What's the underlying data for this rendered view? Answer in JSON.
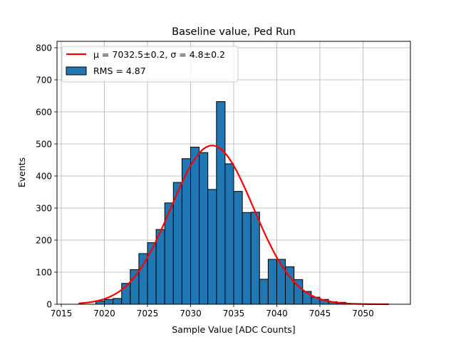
{
  "chart_data": {
    "type": "bar",
    "title": "Baseline value, Ped Run",
    "xlabel": "Sample Value [ADC Counts]",
    "ylabel": "Events",
    "xlim": [
      7014.5,
      7055.5
    ],
    "ylim": [
      0,
      820
    ],
    "xticks": [
      7015,
      7020,
      7025,
      7030,
      7035,
      7040,
      7045,
      7050
    ],
    "yticks": [
      0,
      100,
      200,
      300,
      400,
      500,
      600,
      700,
      800
    ],
    "grid": true,
    "legend_position": "top-left",
    "colors": {
      "bars": "#1f77b4",
      "fit": "#ff0000",
      "grid": "#b0b0b0"
    },
    "histogram": {
      "name": "RMS = 4.87",
      "bin_width": 1,
      "bins": [
        {
          "x": 7019.5,
          "value": 10
        },
        {
          "x": 7020.5,
          "value": 15
        },
        {
          "x": 7021.5,
          "value": 18
        },
        {
          "x": 7022.5,
          "value": 65
        },
        {
          "x": 7023.5,
          "value": 108
        },
        {
          "x": 7024.5,
          "value": 158
        },
        {
          "x": 7025.5,
          "value": 192
        },
        {
          "x": 7026.5,
          "value": 233
        },
        {
          "x": 7027.5,
          "value": 316
        },
        {
          "x": 7028.5,
          "value": 380
        },
        {
          "x": 7029.5,
          "value": 454
        },
        {
          "x": 7030.5,
          "value": 490
        },
        {
          "x": 7031.5,
          "value": 473
        },
        {
          "x": 7032.5,
          "value": 358
        },
        {
          "x": 7033.5,
          "value": 632
        },
        {
          "x": 7034.5,
          "value": 438
        },
        {
          "x": 7035.5,
          "value": 352
        },
        {
          "x": 7036.5,
          "value": 286
        },
        {
          "x": 7037.5,
          "value": 287
        },
        {
          "x": 7038.5,
          "value": 78
        },
        {
          "x": 7039.5,
          "value": 140
        },
        {
          "x": 7040.5,
          "value": 140
        },
        {
          "x": 7041.5,
          "value": 117
        },
        {
          "x": 7042.5,
          "value": 77
        },
        {
          "x": 7043.5,
          "value": 40
        },
        {
          "x": 7044.5,
          "value": 22
        },
        {
          "x": 7045.5,
          "value": 15
        },
        {
          "x": 7046.5,
          "value": 8
        },
        {
          "x": 7047.5,
          "value": 6
        }
      ]
    },
    "fit": {
      "name": "μ = 7032.5±0.2, σ = 4.8±0.2",
      "type": "gaussian",
      "mu": 7032.5,
      "sigma": 4.8,
      "amplitude": 495,
      "x_range": [
        7017,
        7053
      ]
    }
  }
}
